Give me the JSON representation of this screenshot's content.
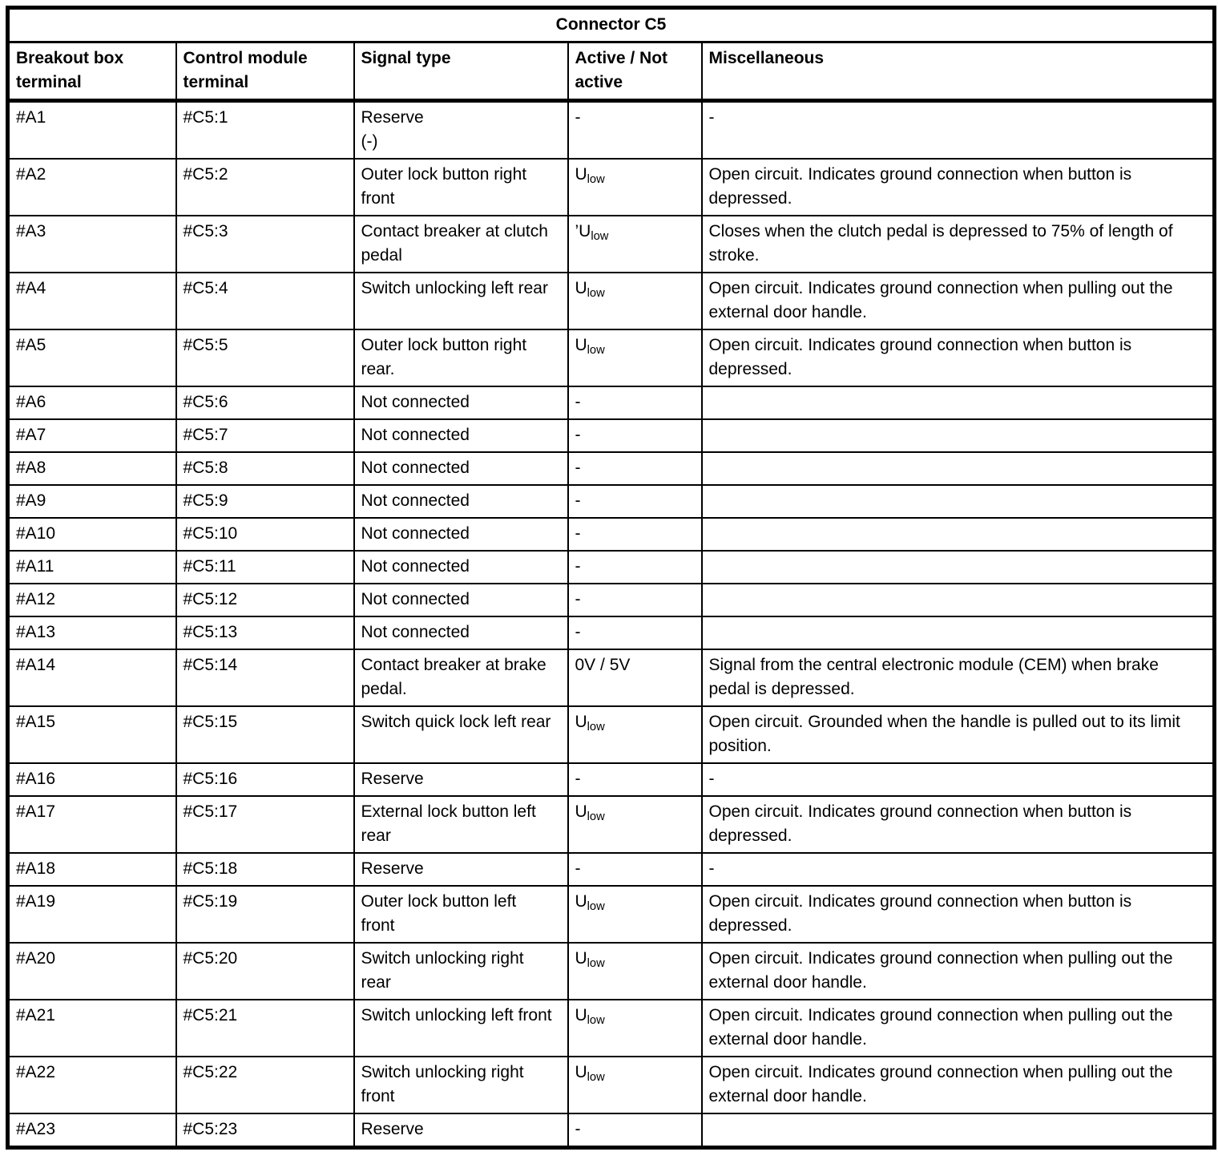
{
  "title": "Connector C5",
  "columns": [
    "Breakout box terminal",
    "Control module terminal",
    "Signal type",
    "Active / Not active",
    "Miscellaneous"
  ],
  "colors": {
    "border": "#000000",
    "background": "#ffffff",
    "text": "#000000"
  },
  "rows": [
    {
      "breakout": "#A1",
      "module": "#C5:1",
      "signal": "Reserve\n(-)",
      "active": "-",
      "active_sub": "",
      "misc": "-"
    },
    {
      "breakout": "#A2",
      "module": "#C5:2",
      "signal": "Outer lock button right front",
      "active": "U",
      "active_sub": "low",
      "misc": "Open circuit. Indicates ground connection when button is depressed."
    },
    {
      "breakout": "#A3",
      "module": "#C5:3",
      "signal": "Contact breaker at clutch pedal",
      "active": "’U",
      "active_sub": "low",
      "misc": "Closes when the clutch pedal is depressed to 75% of length of stroke."
    },
    {
      "breakout": "#A4",
      "module": "#C5:4",
      "signal": "Switch unlocking left rear",
      "active": "U",
      "active_sub": "low",
      "misc": "Open circuit. Indicates ground connection when pulling out the external door handle."
    },
    {
      "breakout": "#A5",
      "module": "#C5:5",
      "signal": "Outer lock button right rear.",
      "active": "U",
      "active_sub": "low",
      "misc": "Open circuit. Indicates ground connection when button is depressed."
    },
    {
      "breakout": "#A6",
      "module": "#C5:6",
      "signal": "Not connected",
      "active": "-",
      "active_sub": "",
      "misc": ""
    },
    {
      "breakout": "#A7",
      "module": "#C5:7",
      "signal": "Not connected",
      "active": "-",
      "active_sub": "",
      "misc": ""
    },
    {
      "breakout": "#A8",
      "module": "#C5:8",
      "signal": "Not connected",
      "active": "-",
      "active_sub": "",
      "misc": ""
    },
    {
      "breakout": "#A9",
      "module": "#C5:9",
      "signal": "Not connected",
      "active": "-",
      "active_sub": "",
      "misc": ""
    },
    {
      "breakout": "#A10",
      "module": "#C5:10",
      "signal": "Not connected",
      "active": "-",
      "active_sub": "",
      "misc": ""
    },
    {
      "breakout": "#A11",
      "module": "#C5:11",
      "signal": "Not connected",
      "active": "-",
      "active_sub": "",
      "misc": ""
    },
    {
      "breakout": "#A12",
      "module": "#C5:12",
      "signal": "Not connected",
      "active": "-",
      "active_sub": "",
      "misc": ""
    },
    {
      "breakout": "#A13",
      "module": "#C5:13",
      "signal": "Not connected",
      "active": "-",
      "active_sub": "",
      "misc": ""
    },
    {
      "breakout": "#A14",
      "module": "#C5:14",
      "signal": "Contact breaker at brake pedal.",
      "active": "0V / 5V",
      "active_sub": "",
      "misc": "Signal from the central electronic module (CEM) when brake pedal is depressed."
    },
    {
      "breakout": "#A15",
      "module": "#C5:15",
      "signal": "Switch quick lock left rear",
      "active": "U",
      "active_sub": "low",
      "misc": "Open circuit. Grounded when the handle is pulled out to its limit position."
    },
    {
      "breakout": "#A16",
      "module": "#C5:16",
      "signal": "Reserve",
      "active": "-",
      "active_sub": "",
      "misc": "-"
    },
    {
      "breakout": "#A17",
      "module": "#C5:17",
      "signal": "External lock button left rear",
      "active": "U",
      "active_sub": "low",
      "misc": "Open circuit. Indicates ground connection when button is depressed."
    },
    {
      "breakout": "#A18",
      "module": "#C5:18",
      "signal": "Reserve",
      "active": "-",
      "active_sub": "",
      "misc": "-"
    },
    {
      "breakout": "#A19",
      "module": "#C5:19",
      "signal": "Outer lock button left front",
      "active": "U",
      "active_sub": "low",
      "misc": "Open circuit. Indicates ground connection when button is depressed."
    },
    {
      "breakout": "#A20",
      "module": "#C5:20",
      "signal": "Switch unlocking right rear",
      "active": "U",
      "active_sub": "low",
      "misc": "Open circuit. Indicates ground connection when pulling out the external door handle."
    },
    {
      "breakout": "#A21",
      "module": "#C5:21",
      "signal": "Switch unlocking left front",
      "active": "U",
      "active_sub": "low",
      "misc": "Open circuit. Indicates ground connection when pulling out the external door handle."
    },
    {
      "breakout": "#A22",
      "module": "#C5:22",
      "signal": "Switch unlocking right front",
      "active": "U",
      "active_sub": "low",
      "misc": "Open circuit. Indicates ground connection when pulling out the external door handle."
    },
    {
      "breakout": "#A23",
      "module": "#C5:23",
      "signal": "Reserve",
      "active": "-",
      "active_sub": "",
      "misc": ""
    }
  ]
}
